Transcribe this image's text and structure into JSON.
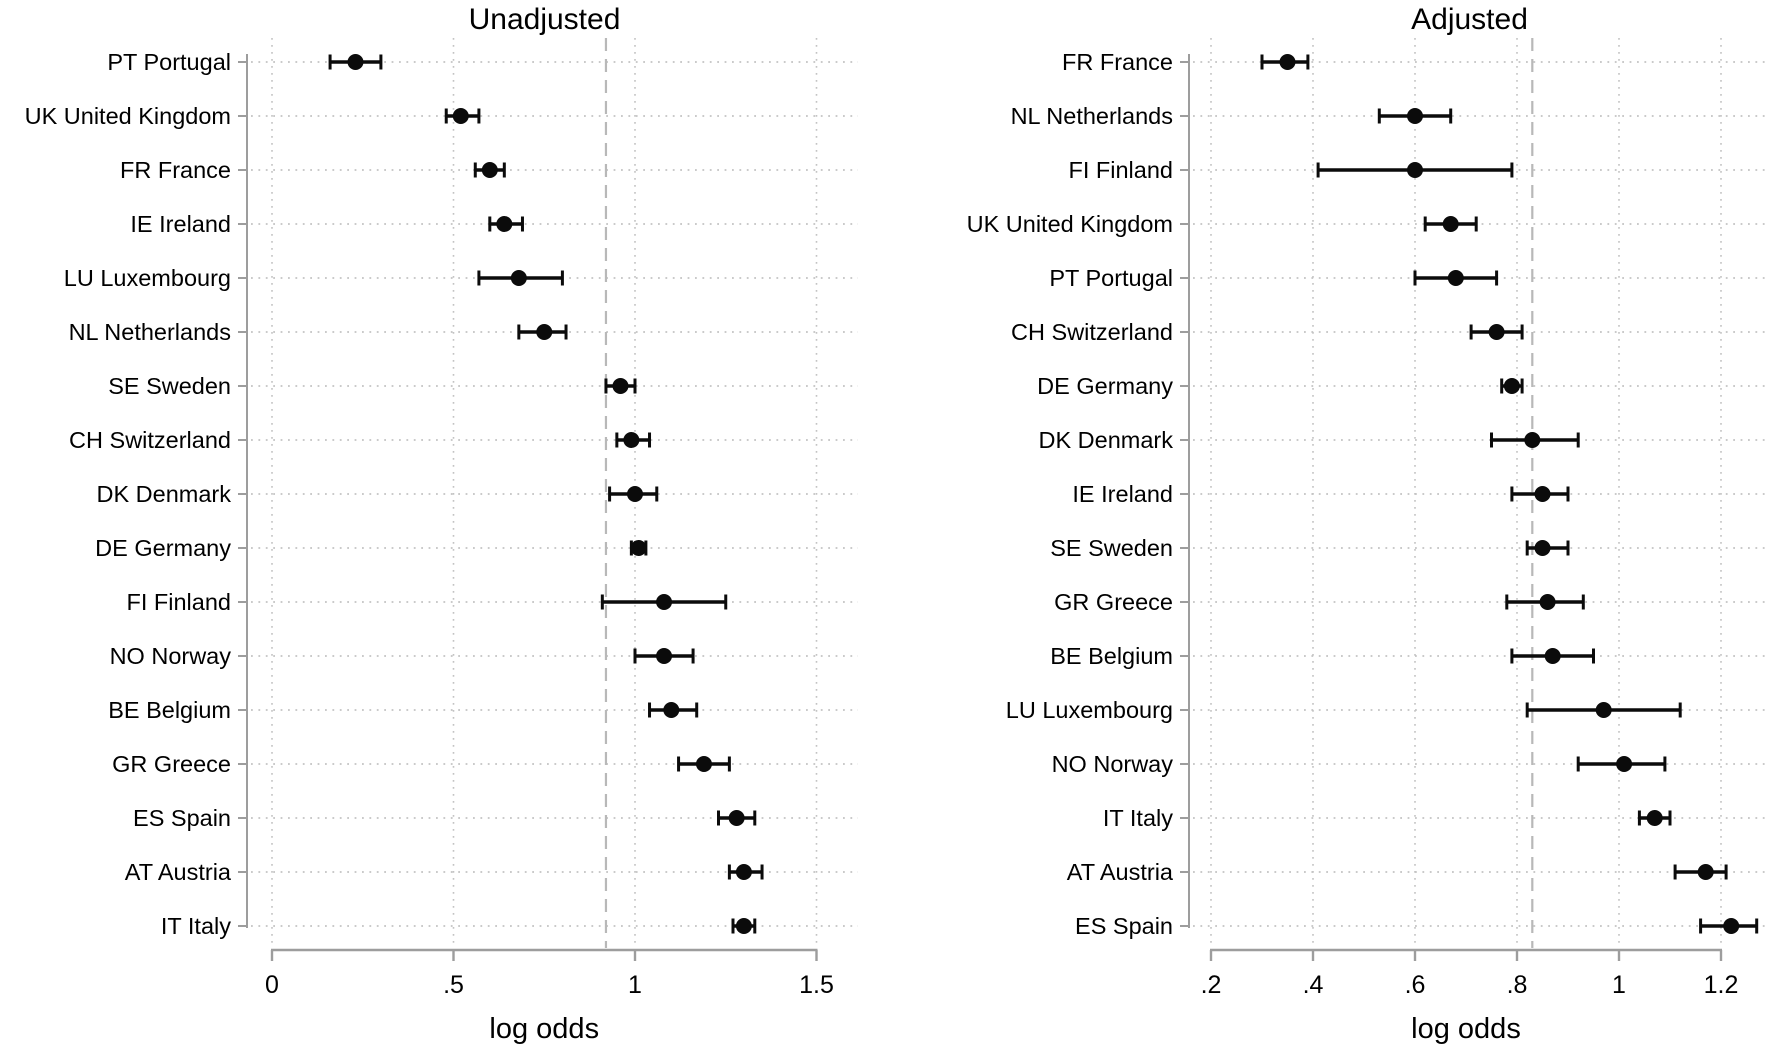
{
  "figure": {
    "background_color": "#ffffff",
    "text_color": "#000000",
    "grid_color": "#c3c3c3",
    "axis_color": "#9d9d9d",
    "refline_color": "#b8b8b8",
    "marker_color": "#0b0b0b",
    "x_axis_label": "log odds"
  },
  "chart_data": [
    {
      "type": "scatter",
      "variant": "forest-plot-dot-with-ci",
      "title": "Unadjusted",
      "xlabel": "log odds",
      "xlim": [
        -0.08,
        1.62
      ],
      "grid": true,
      "refline_value": 0.92,
      "xticks": [
        {
          "label": "0",
          "value": 0
        },
        {
          "label": ".5",
          "value": 0.5
        },
        {
          "label": "1",
          "value": 1
        },
        {
          "label": "1.5",
          "value": 1.5
        }
      ],
      "rows": [
        {
          "label": "PT Portugal",
          "est": 0.23,
          "lo": 0.16,
          "hi": 0.3
        },
        {
          "label": "UK United Kingdom",
          "est": 0.52,
          "lo": 0.48,
          "hi": 0.57
        },
        {
          "label": "FR France",
          "est": 0.6,
          "lo": 0.56,
          "hi": 0.64
        },
        {
          "label": "IE Ireland",
          "est": 0.64,
          "lo": 0.6,
          "hi": 0.69
        },
        {
          "label": "LU Luxembourg",
          "est": 0.68,
          "lo": 0.57,
          "hi": 0.8
        },
        {
          "label": "NL Netherlands",
          "est": 0.75,
          "lo": 0.68,
          "hi": 0.81
        },
        {
          "label": "SE Sweden",
          "est": 0.96,
          "lo": 0.92,
          "hi": 1.0
        },
        {
          "label": "CH Switzerland",
          "est": 0.99,
          "lo": 0.95,
          "hi": 1.04
        },
        {
          "label": "DK Denmark",
          "est": 1.0,
          "lo": 0.93,
          "hi": 1.06
        },
        {
          "label": "DE Germany",
          "est": 1.01,
          "lo": 0.99,
          "hi": 1.03
        },
        {
          "label": "FI Finland",
          "est": 1.08,
          "lo": 0.91,
          "hi": 1.25
        },
        {
          "label": "NO Norway",
          "est": 1.08,
          "lo": 1.0,
          "hi": 1.16
        },
        {
          "label": "BE Belgium",
          "est": 1.1,
          "lo": 1.04,
          "hi": 1.17
        },
        {
          "label": "GR Greece",
          "est": 1.19,
          "lo": 1.12,
          "hi": 1.26
        },
        {
          "label": "ES Spain",
          "est": 1.28,
          "lo": 1.23,
          "hi": 1.33
        },
        {
          "label": "AT Austria",
          "est": 1.3,
          "lo": 1.26,
          "hi": 1.35
        },
        {
          "label": "IT Italy",
          "est": 1.3,
          "lo": 1.27,
          "hi": 1.33
        }
      ]
    },
    {
      "type": "scatter",
      "variant": "forest-plot-dot-with-ci",
      "title": "Adjusted",
      "xlabel": "log odds",
      "xlim": [
        0.1,
        1.3
      ],
      "grid": true,
      "refline_value": 0.83,
      "xticks": [
        {
          "label": ".2",
          "value": 0.2
        },
        {
          "label": ".4",
          "value": 0.4
        },
        {
          "label": ".6",
          "value": 0.6
        },
        {
          "label": ".8",
          "value": 0.8
        },
        {
          "label": "1",
          "value": 1
        },
        {
          "label": "1.2",
          "value": 1.2
        }
      ],
      "rows": [
        {
          "label": "FR France",
          "est": 0.35,
          "lo": 0.3,
          "hi": 0.39
        },
        {
          "label": "NL Netherlands",
          "est": 0.6,
          "lo": 0.53,
          "hi": 0.67
        },
        {
          "label": "FI Finland",
          "est": 0.6,
          "lo": 0.41,
          "hi": 0.79
        },
        {
          "label": "UK United Kingdom",
          "est": 0.67,
          "lo": 0.62,
          "hi": 0.72
        },
        {
          "label": "PT Portugal",
          "est": 0.68,
          "lo": 0.6,
          "hi": 0.76
        },
        {
          "label": "CH Switzerland",
          "est": 0.76,
          "lo": 0.71,
          "hi": 0.81
        },
        {
          "label": "DE Germany",
          "est": 0.79,
          "lo": 0.77,
          "hi": 0.81
        },
        {
          "label": "DK Denmark",
          "est": 0.83,
          "lo": 0.75,
          "hi": 0.92
        },
        {
          "label": "IE Ireland",
          "est": 0.85,
          "lo": 0.79,
          "hi": 0.9
        },
        {
          "label": "SE Sweden",
          "est": 0.85,
          "lo": 0.82,
          "hi": 0.9
        },
        {
          "label": "GR Greece",
          "est": 0.86,
          "lo": 0.78,
          "hi": 0.93
        },
        {
          "label": "BE Belgium",
          "est": 0.87,
          "lo": 0.79,
          "hi": 0.95
        },
        {
          "label": "LU Luxembourg",
          "est": 0.97,
          "lo": 0.82,
          "hi": 1.12
        },
        {
          "label": "NO Norway",
          "est": 1.01,
          "lo": 0.92,
          "hi": 1.09
        },
        {
          "label": "IT Italy",
          "est": 1.07,
          "lo": 1.04,
          "hi": 1.1
        },
        {
          "label": "AT Austria",
          "est": 1.17,
          "lo": 1.11,
          "hi": 1.21
        },
        {
          "label": "ES Spain",
          "est": 1.22,
          "lo": 1.16,
          "hi": 1.27
        }
      ]
    }
  ]
}
